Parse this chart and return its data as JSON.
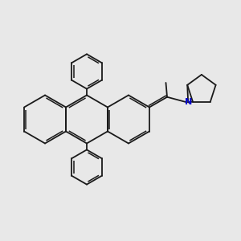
{
  "bg_color": "#e8e8e8",
  "bond_color": "#1a1a1a",
  "n_color": "#0000cc",
  "line_width": 1.3,
  "dbo": 0.055,
  "figsize": [
    3.0,
    3.0
  ],
  "dpi": 100
}
